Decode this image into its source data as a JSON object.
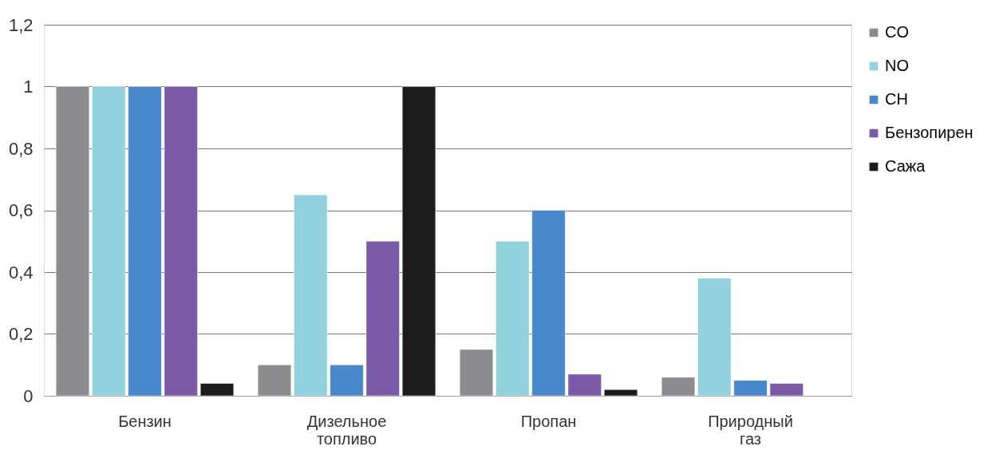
{
  "chart_data": {
    "type": "bar",
    "categories": [
      "Бензин",
      "Дизельное топливо",
      "Пропан",
      "Природный газ"
    ],
    "series": [
      {
        "name": "CO",
        "color": "#8c8c8e",
        "values": [
          1,
          0.1,
          0.15,
          0.06
        ]
      },
      {
        "name": "NO",
        "color": "#92d2de",
        "values": [
          1,
          0.65,
          0.5,
          0.38
        ]
      },
      {
        "name": "CH",
        "color": "#4a88cc",
        "values": [
          1,
          0.1,
          0.6,
          0.05
        ]
      },
      {
        "name": "Бензопирен",
        "color": "#7b5ba8",
        "values": [
          1,
          0.5,
          0.07,
          0.04
        ]
      },
      {
        "name": "Сажа",
        "color": "#1c1c1c",
        "values": [
          0.04,
          1,
          0.02,
          null
        ]
      }
    ],
    "ylim": [
      0,
      1.2
    ],
    "yticks": [
      0,
      {
        "value": 0.2,
        "label": "0,2"
      },
      {
        "value": 0.4,
        "label": "0,4"
      },
      {
        "value": 0.6,
        "label": "0,6"
      },
      {
        "value": 0.8,
        "label": "0,8"
      },
      1,
      {
        "value": 1.2,
        "label": "1,2"
      }
    ],
    "grid": "y",
    "legend": "right"
  }
}
